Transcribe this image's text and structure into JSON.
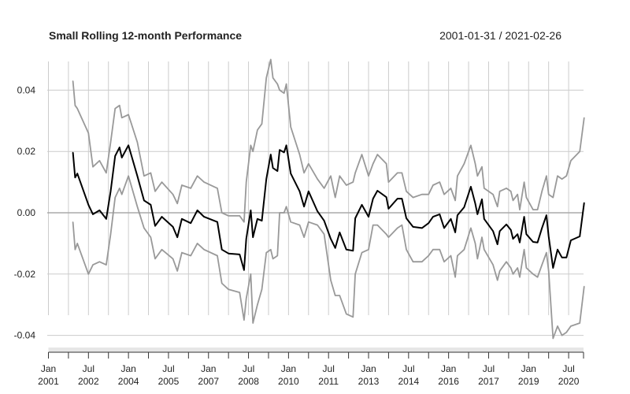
{
  "chart_data": {
    "type": "line",
    "title": "Small Rolling 12-month Performance",
    "date_range": "2001-01-31 / 2021-02-26",
    "xlabel": "",
    "ylabel": "",
    "xlim": [
      "2001-01",
      "2021-02"
    ],
    "ylim": [
      -0.045,
      0.05
    ],
    "y_ticks": [
      0.04,
      0.02,
      0.0,
      -0.02,
      -0.04
    ],
    "y_tick_labels": [
      "0.04",
      "0.02",
      "0.00",
      "-0.02",
      "-0.04"
    ],
    "x_tick_labels": [
      {
        "month": "Jan",
        "year": "2001",
        "date": "2001-01"
      },
      {
        "month": "Jul",
        "year": "2002",
        "date": "2002-07"
      },
      {
        "month": "Jan",
        "year": "2004",
        "date": "2004-01"
      },
      {
        "month": "Jul",
        "year": "2005",
        "date": "2005-07"
      },
      {
        "month": "Jan",
        "year": "2007",
        "date": "2007-01"
      },
      {
        "month": "Jul",
        "year": "2008",
        "date": "2008-07"
      },
      {
        "month": "Jan",
        "year": "2010",
        "date": "2010-01"
      },
      {
        "month": "Jul",
        "year": "2011",
        "date": "2011-07"
      },
      {
        "month": "Jan",
        "year": "2013",
        "date": "2013-01"
      },
      {
        "month": "Jul",
        "year": "2014",
        "date": "2014-07"
      },
      {
        "month": "Jan",
        "year": "2016",
        "date": "2016-01"
      },
      {
        "month": "Jul",
        "year": "2017",
        "date": "2017-07"
      },
      {
        "month": "Jan",
        "year": "2019",
        "date": "2019-01"
      },
      {
        "month": "Jul",
        "year": "2020",
        "date": "2020-07"
      }
    ],
    "grid": true,
    "colors": {
      "mean": "#000000",
      "band": "#999999",
      "grid": "#cccccc",
      "zero_line": "#aaaaaa"
    },
    "x": [
      "2001-12",
      "2002-01",
      "2002-02",
      "2002-07",
      "2002-09",
      "2002-12",
      "2003-03",
      "2003-05",
      "2003-07",
      "2003-09",
      "2003-10",
      "2004-01",
      "2004-05",
      "2004-08",
      "2004-11",
      "2005-01",
      "2005-04",
      "2005-09",
      "2005-11",
      "2006-01",
      "2006-05",
      "2006-08",
      "2006-11",
      "2007-05",
      "2007-07",
      "2007-10",
      "2008-03",
      "2008-05",
      "2008-06",
      "2008-08",
      "2008-09",
      "2008-11",
      "2009-01",
      "2009-03",
      "2009-05",
      "2009-06",
      "2009-08",
      "2009-09",
      "2009-11",
      "2009-12",
      "2010-02",
      "2010-06",
      "2010-08",
      "2010-10",
      "2011-02",
      "2011-05",
      "2011-08",
      "2011-10",
      "2011-12",
      "2012-03",
      "2012-06",
      "2012-07",
      "2012-10",
      "2013-01",
      "2013-03",
      "2013-05",
      "2013-09",
      "2013-10",
      "2014-02",
      "2014-04",
      "2014-06",
      "2014-09",
      "2015-01",
      "2015-04",
      "2015-06",
      "2015-09",
      "2015-11",
      "2016-02",
      "2016-04",
      "2016-05",
      "2016-08",
      "2016-11",
      "2017-01",
      "2017-02",
      "2017-04",
      "2017-05",
      "2017-09",
      "2017-11",
      "2017-12",
      "2018-03",
      "2018-05",
      "2018-06",
      "2018-08",
      "2018-09",
      "2018-11",
      "2018-12",
      "2019-03",
      "2019-05",
      "2019-07",
      "2019-09",
      "2019-10",
      "2019-12",
      "2020-02",
      "2020-04",
      "2020-06",
      "2020-08",
      "2020-12",
      "2021-02"
    ],
    "series": [
      {
        "role": "mean",
        "values": [
          0.0197,
          0.0115,
          0.0128,
          0.0026,
          -0.0005,
          0.0008,
          -0.002,
          0.007,
          0.0185,
          0.0213,
          0.018,
          0.022,
          0.012,
          0.004,
          0.0026,
          -0.0043,
          -0.0013,
          -0.0046,
          -0.008,
          -0.002,
          -0.0034,
          0.0008,
          -0.0013,
          -0.003,
          -0.012,
          -0.0133,
          -0.0136,
          -0.0187,
          -0.0085,
          0.0008,
          -0.008,
          -0.002,
          -0.0026,
          0.011,
          0.019,
          0.0146,
          0.0136,
          0.0205,
          0.0197,
          0.022,
          0.0128,
          0.007,
          0.002,
          0.007,
          0.0005,
          -0.0026,
          -0.0085,
          -0.0115,
          -0.0064,
          -0.012,
          -0.0124,
          -0.0018,
          0.0026,
          -0.0013,
          0.0046,
          0.0072,
          0.0051,
          0.0013,
          0.0046,
          0.0046,
          -0.0018,
          -0.0046,
          -0.005,
          -0.0034,
          -0.0013,
          -0.0005,
          -0.005,
          -0.002,
          -0.0064,
          -0.0008,
          0.0018,
          0.0085,
          0.003,
          -0.0005,
          0.0044,
          -0.002,
          -0.006,
          -0.0103,
          -0.006,
          -0.0038,
          -0.0056,
          -0.0085,
          -0.007,
          -0.0097,
          -0.0013,
          -0.007,
          -0.0095,
          -0.0097,
          -0.005,
          -0.0008,
          -0.0077,
          -0.018,
          -0.012,
          -0.0146,
          -0.0146,
          -0.009,
          -0.0077,
          0.0033
        ]
      },
      {
        "role": "upper",
        "values": [
          0.043,
          0.035,
          0.034,
          0.026,
          0.015,
          0.017,
          0.013,
          0.023,
          0.034,
          0.035,
          0.031,
          0.032,
          0.023,
          0.012,
          0.013,
          0.007,
          0.01,
          0.006,
          0.003,
          0.009,
          0.008,
          0.012,
          0.01,
          0.008,
          0.0,
          -0.001,
          -0.001,
          -0.003,
          0.01,
          0.022,
          0.02,
          0.027,
          0.029,
          0.044,
          0.05,
          0.044,
          0.042,
          0.04,
          0.039,
          0.042,
          0.028,
          0.019,
          0.013,
          0.016,
          0.011,
          0.008,
          0.012,
          0.005,
          0.012,
          0.009,
          0.01,
          0.013,
          0.019,
          0.012,
          0.016,
          0.019,
          0.016,
          0.01,
          0.013,
          0.013,
          0.007,
          0.005,
          0.006,
          0.006,
          0.009,
          0.01,
          0.006,
          0.008,
          0.004,
          0.012,
          0.016,
          0.022,
          0.016,
          0.012,
          0.015,
          0.008,
          0.006,
          0.002,
          0.007,
          0.008,
          0.007,
          0.004,
          0.006,
          0.001,
          0.01,
          0.005,
          0.001,
          0.001,
          0.007,
          0.012,
          0.006,
          0.005,
          0.012,
          0.011,
          0.012,
          0.017,
          0.02,
          0.031
        ]
      },
      {
        "role": "lower",
        "values": [
          -0.003,
          -0.012,
          -0.01,
          -0.02,
          -0.017,
          -0.016,
          -0.017,
          -0.007,
          0.005,
          0.008,
          0.006,
          0.012,
          0.002,
          -0.005,
          -0.008,
          -0.015,
          -0.012,
          -0.015,
          -0.019,
          -0.013,
          -0.014,
          -0.01,
          -0.012,
          -0.014,
          -0.023,
          -0.025,
          -0.026,
          -0.035,
          -0.028,
          -0.02,
          -0.036,
          -0.03,
          -0.025,
          -0.013,
          -0.012,
          -0.015,
          -0.014,
          0.0,
          0.0,
          0.002,
          -0.003,
          -0.004,
          -0.008,
          -0.003,
          -0.004,
          -0.007,
          -0.022,
          -0.027,
          -0.027,
          -0.033,
          -0.034,
          -0.02,
          -0.013,
          -0.012,
          -0.004,
          -0.004,
          -0.007,
          -0.008,
          -0.005,
          -0.004,
          -0.012,
          -0.016,
          -0.016,
          -0.014,
          -0.012,
          -0.012,
          -0.016,
          -0.014,
          -0.021,
          -0.014,
          -0.012,
          -0.005,
          -0.01,
          -0.015,
          -0.008,
          -0.012,
          -0.017,
          -0.022,
          -0.019,
          -0.016,
          -0.018,
          -0.02,
          -0.018,
          -0.021,
          -0.012,
          -0.018,
          -0.02,
          -0.021,
          -0.017,
          -0.013,
          -0.019,
          -0.041,
          -0.037,
          -0.04,
          -0.039,
          -0.037,
          -0.036,
          -0.024
        ]
      }
    ]
  }
}
